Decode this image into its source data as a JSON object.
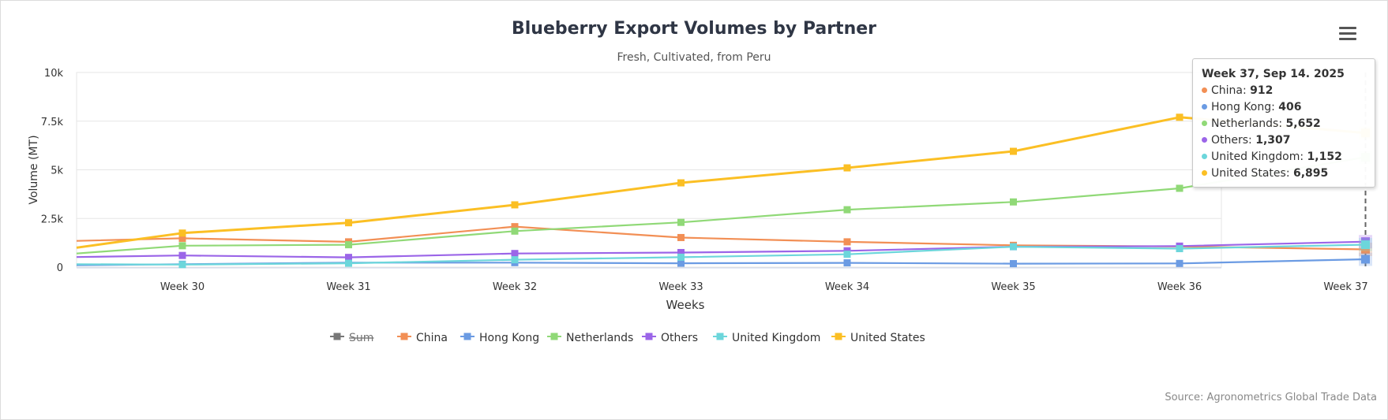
{
  "title": "Blueberry Export Volumes by Partner",
  "subtitle": "Fresh, Cultivated, from Peru",
  "credit": "Source: Agronometrics Global Trade Data",
  "menu_icon": "hamburger-menu-icon",
  "tooltip": {
    "header": "Week 37, Sep 14. 2025",
    "rows": [
      {
        "name": "China",
        "value": "912",
        "color": "#f28f55"
      },
      {
        "name": "Hong Kong",
        "value": "406",
        "color": "#6b9be3"
      },
      {
        "name": "Netherlands",
        "value": "5,652",
        "color": "#90d977"
      },
      {
        "name": "Others",
        "value": "1,307",
        "color": "#9b65e8"
      },
      {
        "name": "United Kingdom",
        "value": "1,152",
        "color": "#6cd6db"
      },
      {
        "name": "United States",
        "value": "6,895",
        "color": "#fbbf24"
      }
    ]
  },
  "chart_data": {
    "type": "line",
    "xlabel": "Weeks",
    "ylabel": "Volume (MT)",
    "ylim": [
      0,
      10000
    ],
    "y_ticks": [
      0,
      2500,
      5000,
      7500,
      10000
    ],
    "y_tick_labels": [
      "0",
      "2.5k",
      "5k",
      "7.5k",
      "10k"
    ],
    "categories": [
      "Week 30",
      "Week 31",
      "Week 32",
      "Week 33",
      "Week 34",
      "Week 35",
      "Week 36",
      "Week 37"
    ],
    "x_visible_from": -0.72,
    "grid": true,
    "legend_placement": "bottom",
    "legend": [
      {
        "name": "Sum",
        "color": "#555555",
        "hidden": true
      },
      {
        "name": "China",
        "color": "#f28f55"
      },
      {
        "name": "Hong Kong",
        "color": "#6b9be3"
      },
      {
        "name": "Netherlands",
        "color": "#90d977"
      },
      {
        "name": "Others",
        "color": "#9b65e8"
      },
      {
        "name": "United Kingdom",
        "color": "#6cd6db"
      },
      {
        "name": "United States",
        "color": "#fbbf24"
      }
    ],
    "series": [
      {
        "name": "China",
        "color": "#f28f55",
        "start": 1350,
        "values": [
          1480,
          1300,
          2080,
          1520,
          1300,
          1120,
          1060,
          912
        ]
      },
      {
        "name": "Hong Kong",
        "color": "#6b9be3",
        "start": 100,
        "values": [
          150,
          230,
          230,
          200,
          220,
          180,
          190,
          406
        ]
      },
      {
        "name": "Netherlands",
        "color": "#90d977",
        "start": 700,
        "values": [
          1100,
          1150,
          1850,
          2300,
          2950,
          3350,
          4050,
          5652
        ]
      },
      {
        "name": "Others",
        "color": "#9b65e8",
        "start": 520,
        "values": [
          600,
          500,
          700,
          750,
          840,
          1050,
          1080,
          1307
        ]
      },
      {
        "name": "United Kingdom",
        "color": "#6cd6db",
        "start": 150,
        "values": [
          130,
          200,
          380,
          510,
          660,
          1050,
          950,
          1152
        ]
      },
      {
        "name": "United States",
        "color": "#fbbf24",
        "start": 1000,
        "values": [
          1750,
          2280,
          3200,
          4330,
          5100,
          5950,
          7700,
          6895
        ]
      }
    ]
  }
}
